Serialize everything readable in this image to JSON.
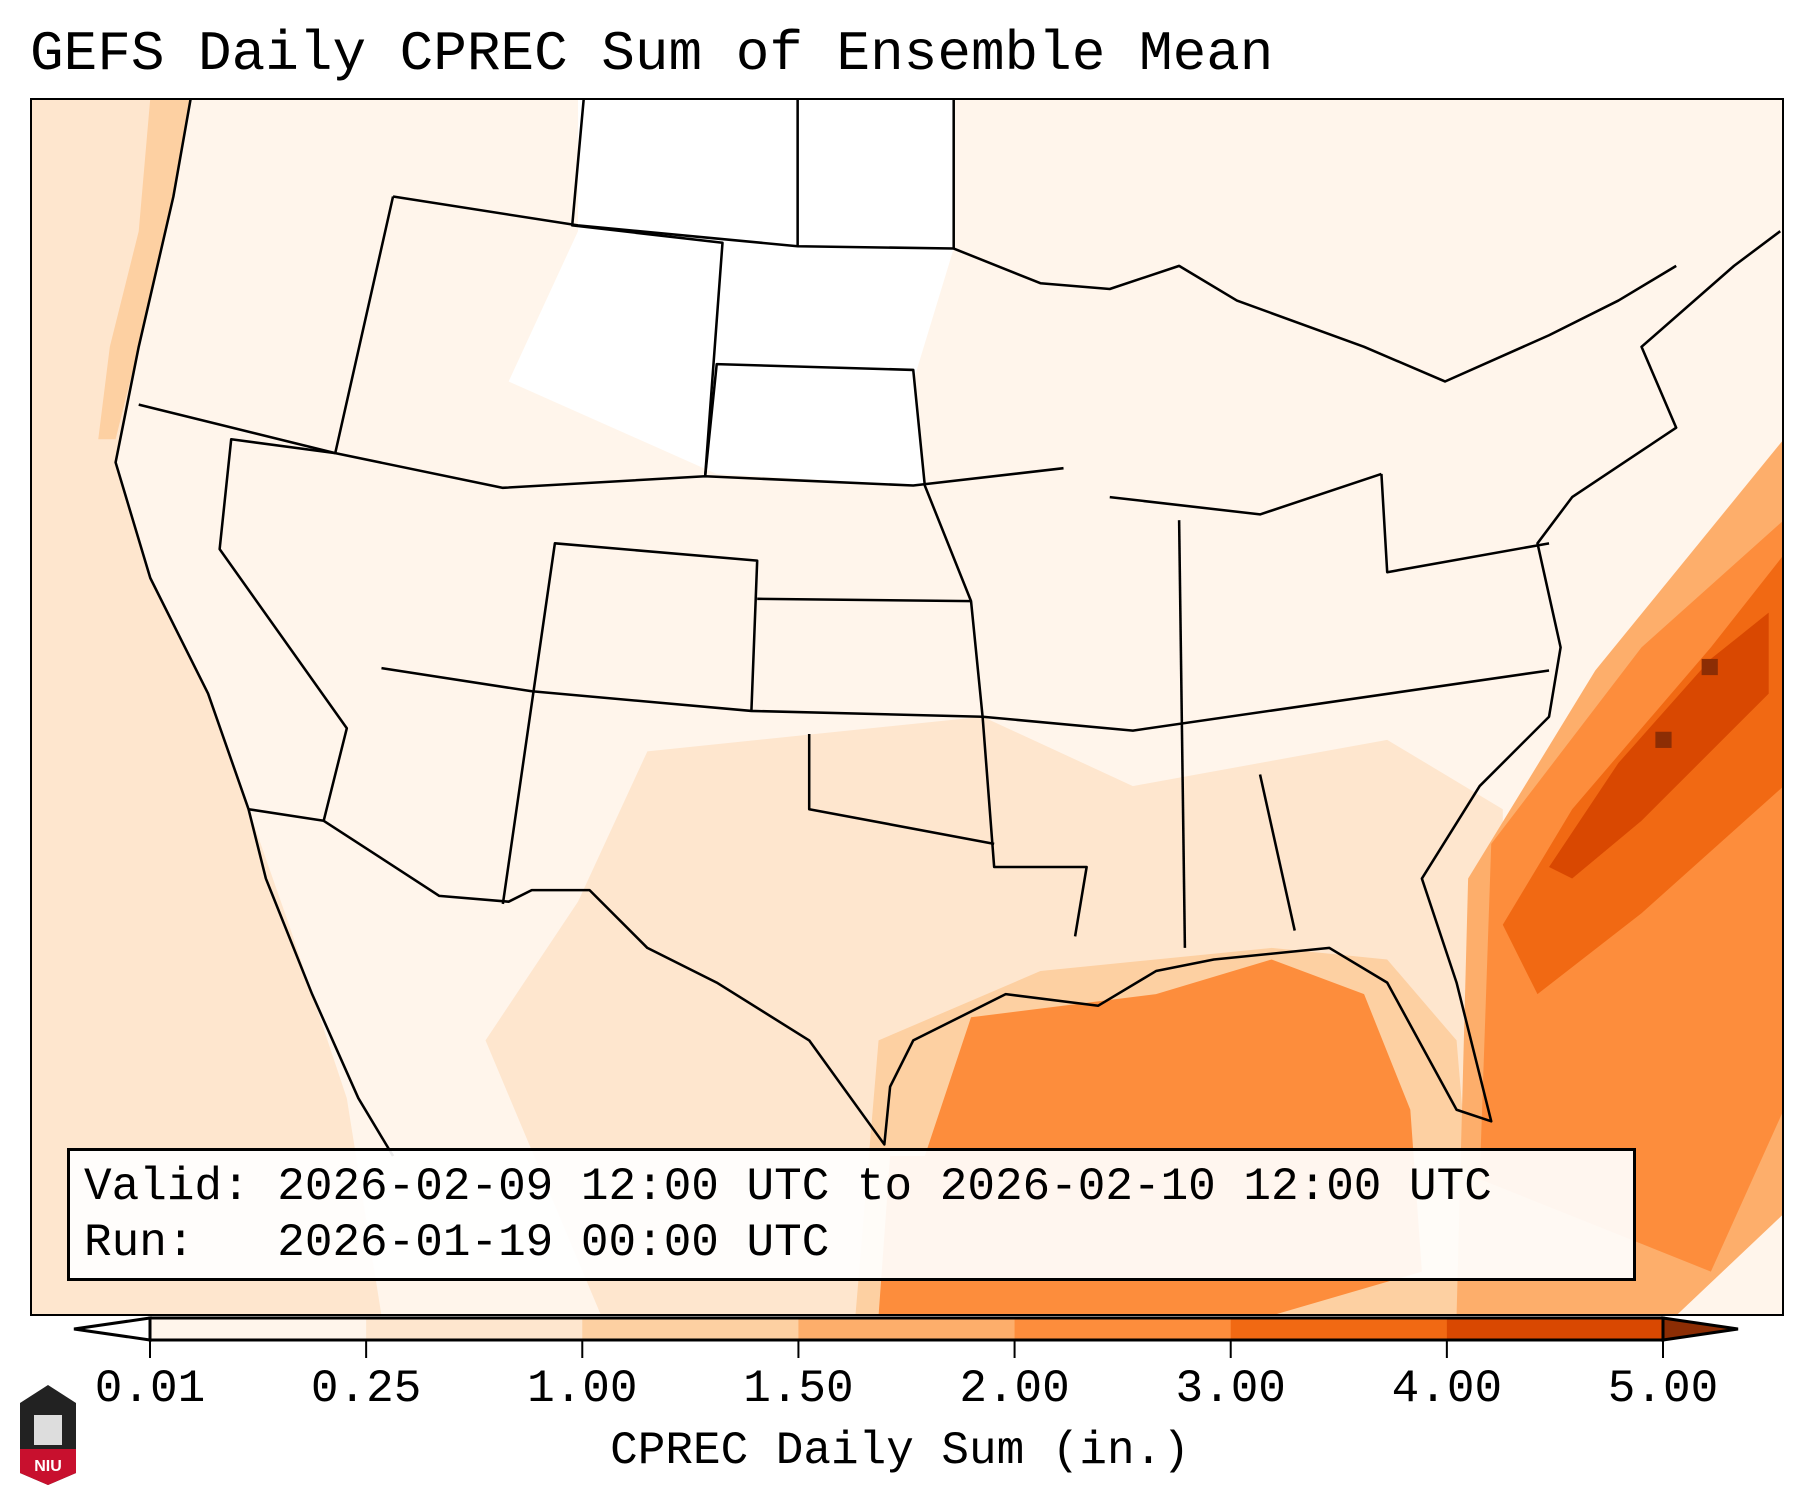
{
  "title": "GEFS Daily CPREC Sum of Ensemble Mean",
  "legend": {
    "valid_line": "Valid: 2026-02-09 12:00 UTC to 2026-02-10 12:00 UTC",
    "run_line": "Run:   2026-01-19 00:00 UTC"
  },
  "colorbar": {
    "label": "CPREC Daily Sum (in.)",
    "ticks": [
      "0.01",
      "0.25",
      "1.00",
      "1.50",
      "2.00",
      "3.00",
      "4.00",
      "5.00"
    ],
    "colors": [
      "#fff5eb",
      "#fee6ce",
      "#fdd0a2",
      "#fdae6b",
      "#fd8d3c",
      "#f16913",
      "#d94801"
    ],
    "under_color": "#ffffff",
    "over_color": "#8c2d04"
  },
  "logo": {
    "text": "NIU"
  }
}
